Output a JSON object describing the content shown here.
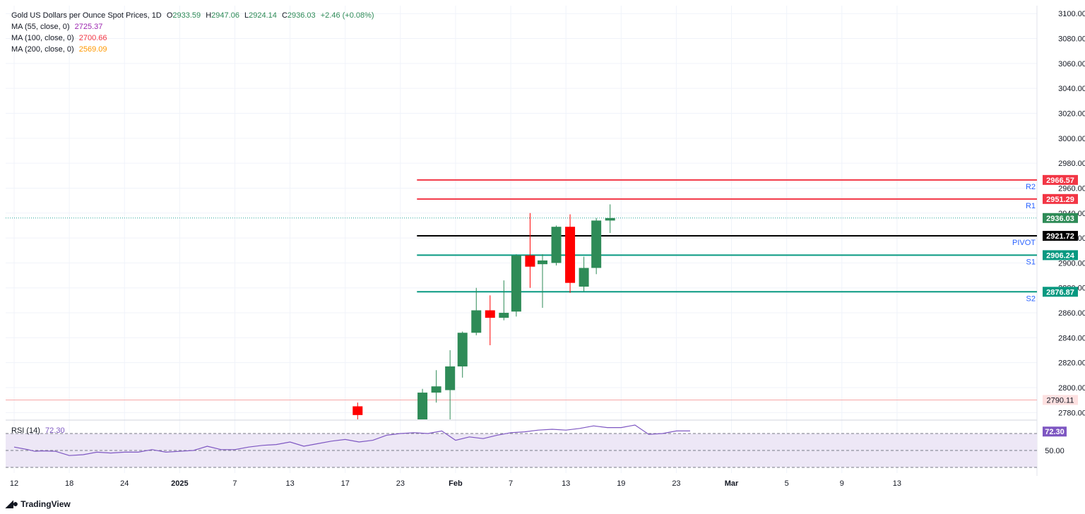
{
  "header": {
    "symbol": "Gold US Dollars per Ounce Spot Prices, 1D",
    "ohlc": [
      {
        "k": "O",
        "v": "2933.59"
      },
      {
        "k": "H",
        "v": "2947.06"
      },
      {
        "k": "L",
        "v": "2924.14"
      },
      {
        "k": "C",
        "v": "2936.03"
      }
    ],
    "change": "+2.46 (+0.08%)"
  },
  "indicators": [
    {
      "label": "MA (55, close, 0)",
      "value": "2725.37",
      "color": "#9c27b0"
    },
    {
      "label": "MA (100, close, 0)",
      "value": "2700.66",
      "color": "#f23645"
    },
    {
      "label": "MA (200, close, 0)",
      "value": "2569.09",
      "color": "#ff9800"
    }
  ],
  "rsi": {
    "label": "RSI (14)",
    "value": "72.30",
    "color": "#7e57c2"
  },
  "footer": {
    "brand": "TradingView",
    "logo": "tradingview-logo-icon"
  },
  "colors": {
    "up": "#2e8b57",
    "down": "#ff0000",
    "resistance": "#f23645",
    "support": "#089981",
    "pivot": "#000000",
    "price_line": "#26a69a",
    "rsi_band": "#ede7f6"
  },
  "chart_data": [
    {
      "type": "candlestick",
      "title": "Gold US Dollars per Ounce Spot Prices, 1D",
      "x_ticks": [
        {
          "label": "12",
          "i": 0
        },
        {
          "label": "18",
          "i": 4
        },
        {
          "label": "24",
          "i": 8
        },
        {
          "label": "2025",
          "i": 12
        },
        {
          "label": "7",
          "i": 16
        },
        {
          "label": "13",
          "i": 20
        },
        {
          "label": "17",
          "i": 24
        },
        {
          "label": "23",
          "i": 28
        },
        {
          "label": "Feb",
          "i": 32
        },
        {
          "label": "7",
          "i": 36
        },
        {
          "label": "13",
          "i": 40
        },
        {
          "label": "19",
          "i": 44
        },
        {
          "label": "23",
          "i": 48
        },
        {
          "label": "Mar",
          "i": 52
        },
        {
          "label": "5",
          "i": 56
        },
        {
          "label": "9",
          "i": 60
        },
        {
          "label": "13",
          "i": 64
        }
      ],
      "ylim": [
        2768,
        3102
      ],
      "y_ticks": [
        2780,
        2800,
        2820,
        2840,
        2860,
        2880,
        2900,
        2920,
        2940,
        2960,
        2980,
        3000,
        3020,
        3040,
        3060,
        3080,
        3100
      ],
      "candles": [
        {
          "i": 24.9,
          "o": 2785,
          "h": 2788,
          "l": 2770,
          "c": 2778
        },
        {
          "i": 29.6,
          "o": 2770,
          "h": 2799,
          "l": 2765,
          "c": 2796
        },
        {
          "i": 30.6,
          "o": 2796,
          "h": 2814,
          "l": 2788,
          "c": 2801
        },
        {
          "i": 31.6,
          "o": 2798,
          "h": 2830,
          "l": 2768,
          "c": 2817
        },
        {
          "i": 32.5,
          "o": 2817,
          "h": 2845,
          "l": 2808,
          "c": 2844
        },
        {
          "i": 33.5,
          "o": 2844,
          "h": 2880,
          "l": 2842,
          "c": 2862
        },
        {
          "i": 34.5,
          "o": 2862,
          "h": 2874,
          "l": 2834,
          "c": 2856
        },
        {
          "i": 35.5,
          "o": 2856,
          "h": 2886,
          "l": 2854,
          "c": 2860
        },
        {
          "i": 36.4,
          "o": 2861,
          "h": 2907,
          "l": 2857,
          "c": 2906
        },
        {
          "i": 37.4,
          "o": 2906,
          "h": 2940,
          "l": 2880,
          "c": 2897
        },
        {
          "i": 38.3,
          "o": 2899,
          "h": 2907,
          "l": 2864,
          "c": 2902
        },
        {
          "i": 39.3,
          "o": 2900,
          "h": 2930,
          "l": 2898,
          "c": 2929
        },
        {
          "i": 40.3,
          "o": 2929,
          "h": 2939,
          "l": 2876,
          "c": 2884
        },
        {
          "i": 41.3,
          "o": 2881,
          "h": 2905,
          "l": 2877,
          "c": 2896
        },
        {
          "i": 42.2,
          "o": 2896,
          "h": 2936,
          "l": 2891,
          "c": 2934
        },
        {
          "i": 43.2,
          "o": 2934,
          "h": 2947,
          "l": 2924,
          "c": 2936
        }
      ],
      "levels": [
        {
          "name": "R2",
          "value": 2966.57,
          "label": "2966.57",
          "color": "#f23645",
          "from_i": 29.2
        },
        {
          "name": "R1",
          "value": 2951.29,
          "label": "2951.29",
          "color": "#f23645",
          "from_i": 29.2
        },
        {
          "name": "PIVOT",
          "value": 2921.72,
          "label": "2921.72",
          "color": "#000000",
          "from_i": 29.2
        },
        {
          "name": "S1",
          "value": 2906.24,
          "label": "2906.24",
          "color": "#089981",
          "from_i": 29.2
        },
        {
          "name": "S2",
          "value": 2876.87,
          "label": "2876.87",
          "color": "#089981",
          "from_i": 29.2
        }
      ],
      "last_price": {
        "value": 2936.03,
        "label": "2936.03"
      },
      "horizontal_line": {
        "value": 2790.11,
        "label": "2790.11",
        "color": "#f7a6a6"
      }
    },
    {
      "type": "line",
      "title": "RSI (14)",
      "ylim": [
        30,
        90
      ],
      "bands": [
        70,
        50,
        30
      ],
      "y_tick_labels": [
        "50.00"
      ],
      "current": {
        "value": 72.3,
        "label": "72.30"
      },
      "series": [
        {
          "values": [
            [
              0,
              54
            ],
            [
              1,
              51
            ],
            [
              1.5,
              49
            ],
            [
              2,
              49.5
            ],
            [
              3,
              49
            ],
            [
              4,
              44
            ],
            [
              5,
              45
            ],
            [
              6,
              48
            ],
            [
              7,
              47
            ],
            [
              8,
              48
            ],
            [
              9,
              48
            ],
            [
              10,
              51
            ],
            [
              11,
              48
            ],
            [
              12,
              49
            ],
            [
              13,
              50
            ],
            [
              14,
              55
            ],
            [
              15,
              51
            ],
            [
              16,
              51
            ],
            [
              17,
              54
            ],
            [
              18,
              56
            ],
            [
              19,
              57
            ],
            [
              20,
              60
            ],
            [
              21,
              55
            ],
            [
              22,
              58
            ],
            [
              23,
              61
            ],
            [
              24,
              63
            ],
            [
              25,
              60
            ],
            [
              26,
              62
            ],
            [
              27,
              68
            ],
            [
              28,
              70
            ],
            [
              29,
              71
            ],
            [
              30,
              70
            ],
            [
              31,
              73
            ],
            [
              32,
              62
            ],
            [
              33,
              66
            ],
            [
              34,
              64
            ],
            [
              35,
              68
            ],
            [
              36,
              71
            ],
            [
              37,
              72
            ],
            [
              38,
              74
            ],
            [
              39,
              75
            ],
            [
              40,
              74
            ],
            [
              41,
              76
            ],
            [
              42,
              79
            ],
            [
              43,
              77
            ],
            [
              44,
              77
            ],
            [
              45,
              80
            ],
            [
              46,
              69
            ],
            [
              47,
              70
            ],
            [
              48,
              73
            ],
            [
              49,
              73
            ]
          ]
        }
      ]
    }
  ]
}
